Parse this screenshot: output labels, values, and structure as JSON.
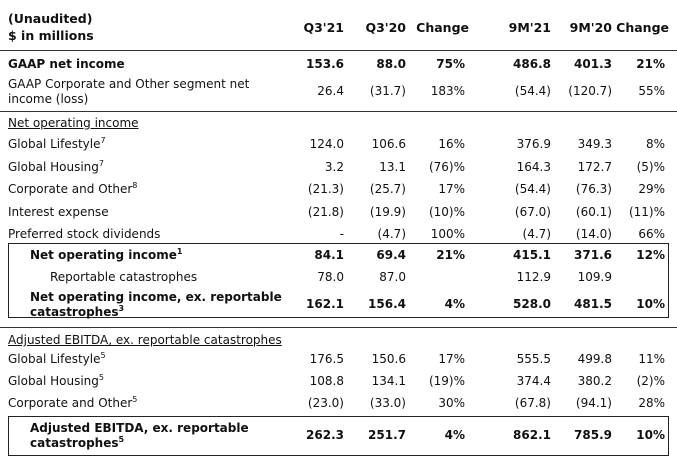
{
  "header": {
    "line1": "(Unaudited)",
    "line2": "$ in millions",
    "columns": [
      "Q3'21",
      "Q3'20",
      "Change",
      "9M'21",
      "9M'20",
      "Change"
    ]
  },
  "gaap_rows": [
    {
      "label": "GAAP net income",
      "sup": "",
      "values": [
        "153.6",
        "88.0",
        "75%",
        "486.8",
        "401.3",
        "21%"
      ]
    },
    {
      "label_lines": [
        "GAAP Corporate and Other segment net",
        "income (loss)"
      ],
      "values": [
        "26.4",
        "(31.7)",
        "183%",
        "(54.4)",
        "(120.7)",
        "55%"
      ]
    }
  ],
  "noi_section": {
    "title": "Net operating income",
    "rows": [
      {
        "label": "Global Lifestyle",
        "sup": "7",
        "values": [
          "124.0",
          "106.6",
          "16%",
          "376.9",
          "349.3",
          "8%"
        ]
      },
      {
        "label": "Global Housing",
        "sup": "7",
        "values": [
          "3.2",
          "13.1",
          "(76)%",
          "164.3",
          "172.7",
          "(5)%"
        ]
      },
      {
        "label": "Corporate and Other",
        "sup": "8",
        "values": [
          "(21.3)",
          "(25.7)",
          "17%",
          "(54.4)",
          "(76.3)",
          "29%"
        ]
      },
      {
        "label": "Interest expense",
        "sup": "",
        "values": [
          "(21.8)",
          "(19.9)",
          "(10)%",
          "(67.0)",
          "(60.1)",
          "(11)%"
        ]
      },
      {
        "label": "Preferred stock dividends",
        "sup": "",
        "values": [
          "-",
          "(4.7)",
          "100%",
          "(4.7)",
          "(14.0)",
          "66%"
        ]
      }
    ],
    "total": {
      "label": "Net operating income",
      "sup": "1",
      "values": [
        "84.1",
        "69.4",
        "21%",
        "415.1",
        "371.6",
        "12%"
      ]
    },
    "catastrophes": {
      "label": "Reportable catastrophes",
      "values": [
        "78.0",
        "87.0",
        "",
        "112.9",
        "109.9",
        ""
      ]
    },
    "ex_cat": {
      "label_lines": [
        "Net operating income, ex. reportable",
        "catastrophes"
      ],
      "sup": "3",
      "values": [
        "162.1",
        "156.4",
        "4%",
        "528.0",
        "481.5",
        "10%"
      ]
    }
  },
  "ebitda_section": {
    "title": "Adjusted EBITDA, ex. reportable catastrophes",
    "rows": [
      {
        "label": "Global Lifestyle",
        "sup": "5",
        "values": [
          "176.5",
          "150.6",
          "17%",
          "555.5",
          "499.8",
          "11%"
        ]
      },
      {
        "label": "Global Housing",
        "sup": "5",
        "values": [
          "108.8",
          "134.1",
          "(19)%",
          "374.4",
          "380.2",
          "(2)%"
        ]
      },
      {
        "label": "Corporate and Other",
        "sup": "5",
        "values": [
          "(23.0)",
          "(33.0)",
          "30%",
          "(67.8)",
          "(94.1)",
          "28%"
        ]
      }
    ],
    "total": {
      "label_lines": [
        "Adjusted EBITDA, ex. reportable",
        "catastrophes"
      ],
      "sup": "5",
      "values": [
        "262.3",
        "251.7",
        "4%",
        "862.1",
        "785.9",
        "10%"
      ]
    }
  }
}
